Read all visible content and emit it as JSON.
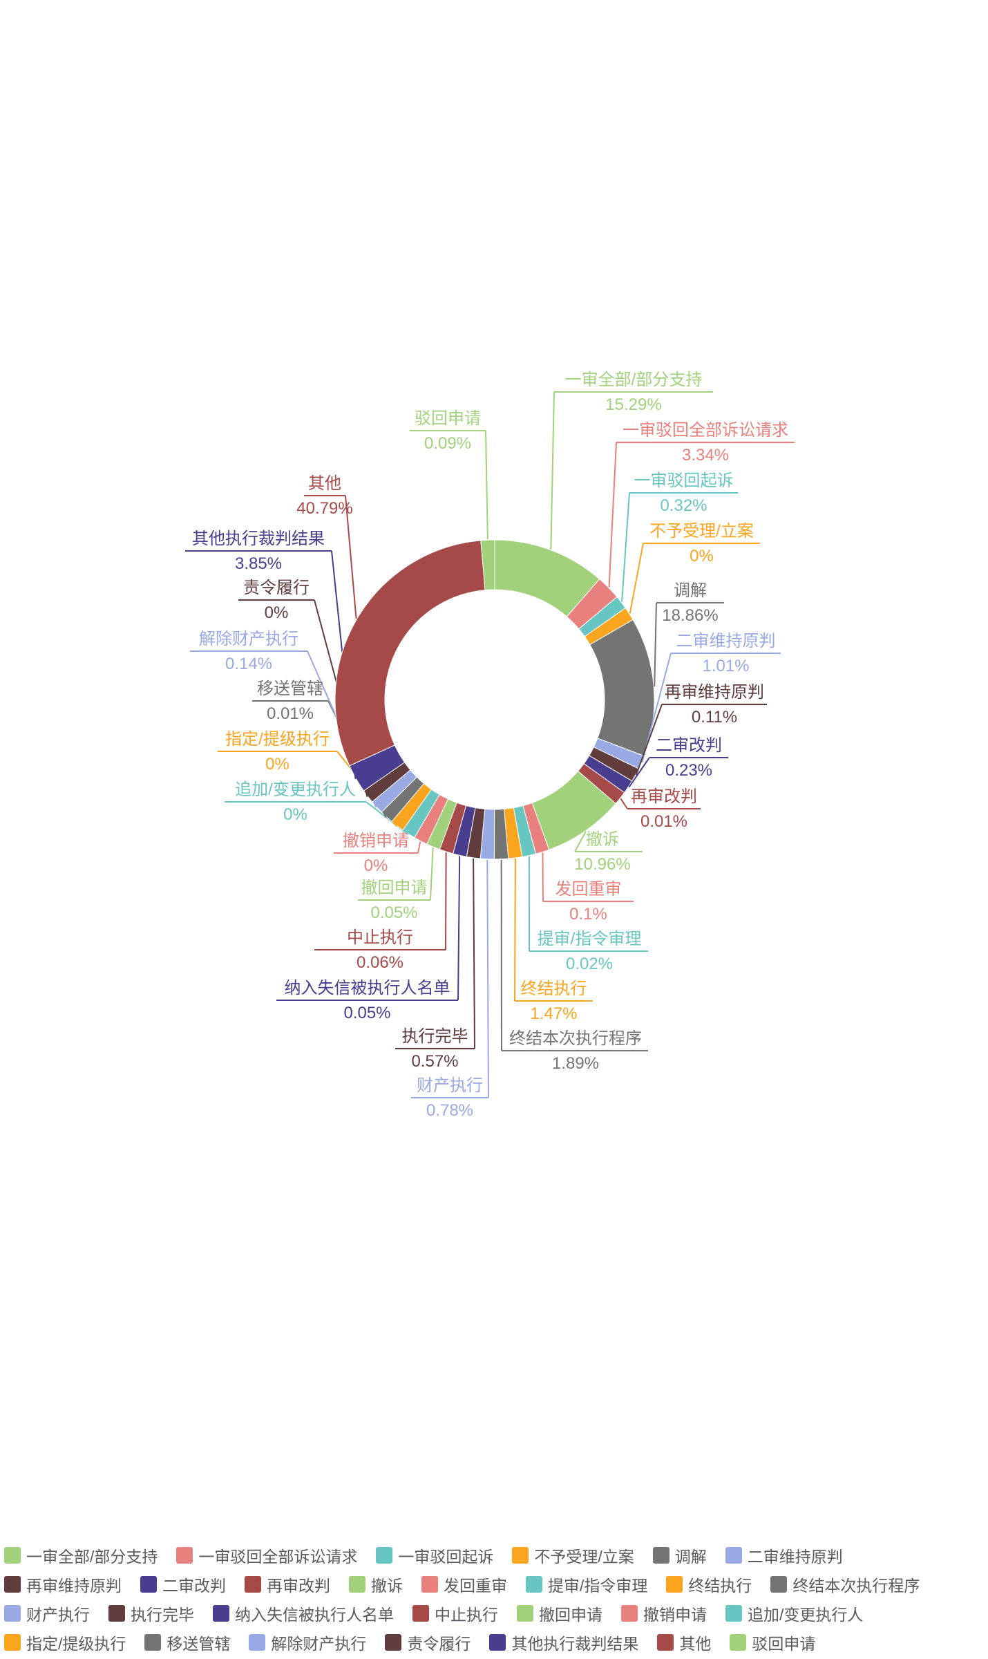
{
  "chart_data": {
    "type": "pie",
    "variant": "donut",
    "title": "",
    "unit": "%",
    "start_angle": "top",
    "direction": "clockwise",
    "legend_position": "bottom",
    "grid": false,
    "inner_radius_ratio": 0.688,
    "min_slice_angle_deg": 5,
    "label_layout": "outside-with-leader-lines",
    "items": [
      {
        "label": "一审全部/部分支持",
        "value": 15.29,
        "display": "15.29%",
        "color": "#A2D17B"
      },
      {
        "label": "一审驳回全部诉讼请求",
        "value": 3.34,
        "display": "3.34%",
        "color": "#E8807E"
      },
      {
        "label": "一审驳回起诉",
        "value": 0.32,
        "display": "0.32%",
        "color": "#68C6C2"
      },
      {
        "label": "不予受理/立案",
        "value": 0,
        "display": "0%",
        "color": "#FBA41E"
      },
      {
        "label": "调解",
        "value": 18.86,
        "display": "18.86%",
        "color": "#747474"
      },
      {
        "label": "二审维持原判",
        "value": 1.01,
        "display": "1.01%",
        "color": "#98A9E4"
      },
      {
        "label": "再审维持原判",
        "value": 0.11,
        "display": "0.11%",
        "color": "#603C3D"
      },
      {
        "label": "二审改判",
        "value": 0.23,
        "display": "0.23%",
        "color": "#483D8F"
      },
      {
        "label": "再审改判",
        "value": 0.01,
        "display": "0.01%",
        "color": "#A54A48"
      },
      {
        "label": "撤诉",
        "value": 10.96,
        "display": "10.96%",
        "color": "#A2D17B"
      },
      {
        "label": "发回重审",
        "value": 0.1,
        "display": "0.1%",
        "color": "#E8807E"
      },
      {
        "label": "提审/指令审理",
        "value": 0.02,
        "display": "0.02%",
        "color": "#68C6C2"
      },
      {
        "label": "终结执行",
        "value": 1.47,
        "display": "1.47%",
        "color": "#FBA41E"
      },
      {
        "label": "终结本次执行程序",
        "value": 1.89,
        "display": "1.89%",
        "color": "#747474"
      },
      {
        "label": "财产执行",
        "value": 0.78,
        "display": "0.78%",
        "color": "#98A9E4"
      },
      {
        "label": "执行完毕",
        "value": 0.57,
        "display": "0.57%",
        "color": "#603C3D"
      },
      {
        "label": "纳入失信被执行人名单",
        "value": 0.05,
        "display": "0.05%",
        "color": "#483D8F"
      },
      {
        "label": "中止执行",
        "value": 0.06,
        "display": "0.06%",
        "color": "#A54A48"
      },
      {
        "label": "撤回申请",
        "value": 0.05,
        "display": "0.05%",
        "color": "#A2D17B"
      },
      {
        "label": "撤销申请",
        "value": 0,
        "display": "0%",
        "color": "#E8807E"
      },
      {
        "label": "追加/变更执行人",
        "value": 0,
        "display": "0%",
        "color": "#68C6C2"
      },
      {
        "label": "指定/提级执行",
        "value": 0,
        "display": "0%",
        "color": "#FBA41E"
      },
      {
        "label": "移送管辖",
        "value": 0.01,
        "display": "0.01%",
        "color": "#747474"
      },
      {
        "label": "解除财产执行",
        "value": 0.14,
        "display": "0.14%",
        "color": "#98A9E4"
      },
      {
        "label": "责令履行",
        "value": 0,
        "display": "0%",
        "color": "#603C3D"
      },
      {
        "label": "其他执行裁判结果",
        "value": 3.85,
        "display": "3.85%",
        "color": "#483D8F"
      },
      {
        "label": "其他",
        "value": 40.79,
        "display": "40.79%",
        "color": "#A54A48"
      },
      {
        "label": "驳回申请",
        "value": 0.09,
        "display": "0.09%",
        "color": "#A2D17B"
      }
    ],
    "legend": {
      "position": "bottom",
      "entries_same_as_items": true
    }
  }
}
